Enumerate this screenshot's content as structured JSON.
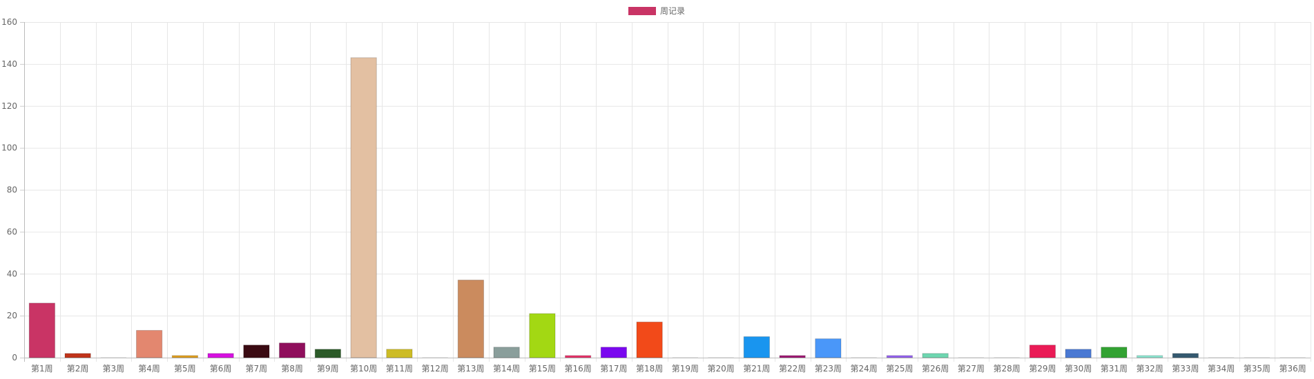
{
  "chart_data": {
    "type": "bar",
    "legend": {
      "label": "周记录",
      "color": "#c93465",
      "position": "top-center"
    },
    "categories": [
      "第1周",
      "第2周",
      "第3周",
      "第4周",
      "第5周",
      "第6周",
      "第7周",
      "第8周",
      "第9周",
      "第10周",
      "第11周",
      "第12周",
      "第13周",
      "第14周",
      "第15周",
      "第16周",
      "第17周",
      "第18周",
      "第19周",
      "第20周",
      "第21周",
      "第22周",
      "第23周",
      "第24周",
      "第25周",
      "第26周",
      "第27周",
      "第28周",
      "第29周",
      "第30周",
      "第31周",
      "第32周",
      "第33周",
      "第34周",
      "第35周",
      "第36周"
    ],
    "values": [
      26,
      2,
      0,
      13,
      1,
      2,
      6,
      7,
      4,
      143,
      4,
      0,
      37,
      5,
      21,
      1,
      5,
      17,
      0,
      0,
      10,
      1,
      9,
      0,
      1,
      2,
      0,
      0,
      6,
      4,
      5,
      1,
      2,
      0,
      0,
      0
    ],
    "colors": [
      "#c93465",
      "#c0341b",
      "#cccccc",
      "#e3876f",
      "#e0a020",
      "#d611e0",
      "#3a0a12",
      "#8f0e5c",
      "#2b5a28",
      "#e3c0a2",
      "#cdbc26",
      "#cccccc",
      "#cb8b5e",
      "#8a9e9b",
      "#a3d813",
      "#e8336a",
      "#7a08ef",
      "#f24a19",
      "#cccccc",
      "#cccccc",
      "#1995ef",
      "#a01a75",
      "#4a97f9",
      "#cccccc",
      "#9563ef",
      "#6fd6b0",
      "#cccccc",
      "#cccccc",
      "#ea1b56",
      "#4a79d3",
      "#32a232",
      "#8ee6d1",
      "#355a70",
      "#cccccc",
      "#cccccc",
      "#cccccc"
    ],
    "y_ticks": [
      "0",
      "20",
      "40",
      "60",
      "80",
      "100",
      "120",
      "140",
      "160"
    ],
    "ylim": [
      0,
      160
    ],
    "xlabel": "",
    "ylabel": "",
    "grid": true
  }
}
